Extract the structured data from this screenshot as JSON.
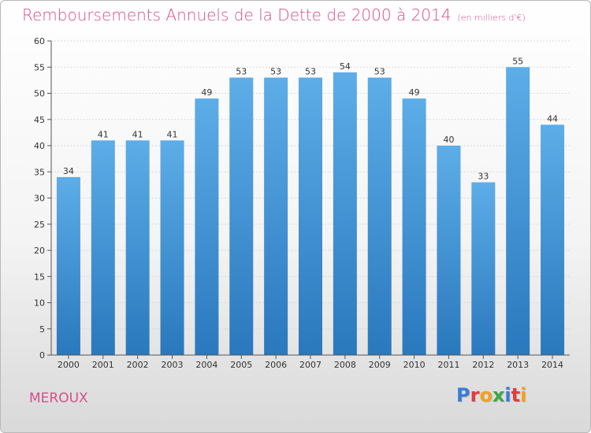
{
  "header": {
    "title": "Remboursements Annuels de la Dette de 2000 à 2014",
    "unit": "(en milliers d'€)"
  },
  "commune": "MEROUX",
  "logo": {
    "letters": [
      {
        "ch": "P",
        "color": "#3a7bd5"
      },
      {
        "ch": "r",
        "color": "#e23c3c"
      },
      {
        "ch": "o",
        "color": "#f0a21b"
      },
      {
        "ch": "x",
        "color": "#3aa845"
      },
      {
        "ch": "i",
        "color": "#3a7bd5"
      },
      {
        "ch": "t",
        "color": "#e23c3c"
      },
      {
        "ch": "i",
        "color": "#f0a21b"
      }
    ]
  },
  "colors": {
    "bar_top": "#5dade8",
    "bar_bottom": "#2a78bd",
    "title": "#d64f8a",
    "grid": "#d9d9d9",
    "axis": "#555555"
  },
  "chart_data": {
    "type": "bar",
    "title": "Remboursements Annuels de la Dette de 2000 à 2014",
    "categories": [
      "2000",
      "2001",
      "2002",
      "2003",
      "2004",
      "2005",
      "2006",
      "2007",
      "2008",
      "2009",
      "2010",
      "2011",
      "2012",
      "2013",
      "2014"
    ],
    "values": [
      34,
      41,
      41,
      41,
      49,
      53,
      53,
      53,
      54,
      53,
      49,
      40,
      33,
      55,
      44
    ],
    "ylim": [
      0,
      60
    ],
    "yticks": [
      0,
      5,
      10,
      15,
      20,
      25,
      30,
      35,
      40,
      45,
      50,
      55,
      60
    ],
    "grid": true,
    "data_labels": true
  }
}
